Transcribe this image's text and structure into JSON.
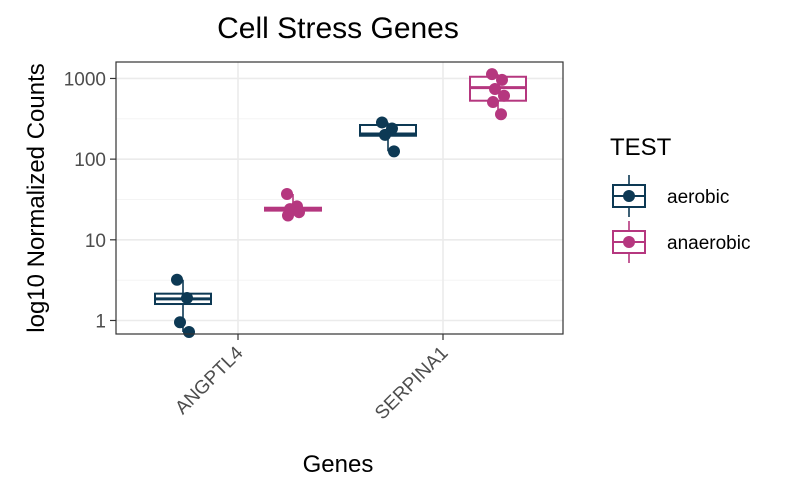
{
  "chart_data": {
    "type": "box",
    "title": "Cell Stress Genes",
    "xlabel": "Genes",
    "ylabel": "log10 Normalized Counts",
    "y_scale": "log10",
    "ylim": [
      0.68,
      1600
    ],
    "y_ticks": [
      1,
      10,
      100,
      1000
    ],
    "y_tick_labels": [
      "1",
      "10",
      "100",
      "1000"
    ],
    "grid": true,
    "legend": {
      "title": "TEST",
      "position": "right"
    },
    "categories": [
      "ANGPTL4",
      "SERPINA1"
    ],
    "series": [
      {
        "name": "aerobic",
        "color": "#0d3954",
        "boxes": [
          {
            "category": "ANGPTL4",
            "q1": 1.6,
            "median": 1.85,
            "q3": 2.15,
            "points": [
              3.2,
              1.9,
              0.95,
              0.72
            ]
          },
          {
            "category": "SERPINA1",
            "q1": 195,
            "median": 205,
            "q3": 265,
            "points": [
              285,
              240,
              200,
              125
            ]
          }
        ]
      },
      {
        "name": "anaerobic",
        "color": "#b5377f",
        "boxes": [
          {
            "category": "ANGPTL4",
            "q1": 23,
            "median": 24,
            "q3": 25,
            "points": [
              37,
              26,
              24,
              22,
              20
            ]
          },
          {
            "category": "SERPINA1",
            "q1": 530,
            "median": 770,
            "q3": 1050,
            "points": [
              1130,
              960,
              740,
              610,
              510,
              360
            ]
          }
        ]
      }
    ]
  }
}
